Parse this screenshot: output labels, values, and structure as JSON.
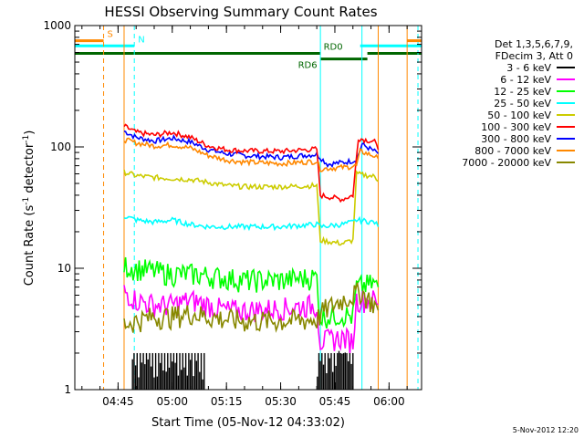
{
  "chart_data": {
    "type": "line",
    "title": "HESSI Observing Summary Count Rates",
    "xlabel": "Start Time (05-Nov-12 04:33:02)",
    "ylabel": "Count Rate (s",
    "ylabel_sup": "-1",
    "ylabel_mid": " detector",
    "ylabel_sup2": "-1",
    "ylabel_end": ")",
    "yscale": "log",
    "ylim": [
      1,
      1000
    ],
    "xlim": [
      "04:33:02",
      "06:09:00"
    ],
    "x_ticks": [
      "04:45",
      "05:00",
      "05:15",
      "05:30",
      "05:45",
      "06:00"
    ],
    "y_ticks": [
      "1",
      "10",
      "100",
      "1000"
    ],
    "timestamp": "5-Nov-2012 12:20",
    "legend": {
      "header": [
        "Det 1,3,5,6,7,9,",
        "FDecim 3, Att 0"
      ],
      "entries": [
        {
          "label": "3 - 6 keV",
          "color": "#000000"
        },
        {
          "label": "6 - 12 keV",
          "color": "#ff00ff"
        },
        {
          "label": "12 - 25 keV",
          "color": "#00ff00"
        },
        {
          "label": "25 - 50 keV",
          "color": "#00ffff"
        },
        {
          "label": "50 - 100 keV",
          "color": "#cccc00"
        },
        {
          "label": "100 - 300 keV",
          "color": "#ff0000"
        },
        {
          "label": "300 - 800 keV",
          "color": "#0000ff"
        },
        {
          "label": "800 - 7000 keV",
          "color": "#ff8800"
        },
        {
          "label": "7000 - 20000 keV",
          "color": "#888800"
        }
      ]
    },
    "flag_bars": [
      {
        "label": "S",
        "color": "#ff8800",
        "segments": [
          [
            "04:33:02",
            "04:41:00"
          ],
          [
            "06:05:00",
            "06:09:00"
          ]
        ],
        "level": 750
      },
      {
        "label": "N",
        "color": "#00ffff",
        "segments": [
          [
            "04:33:02",
            "04:49:30"
          ],
          [
            "05:52:00",
            "06:09:00"
          ]
        ],
        "level": 680
      },
      {
        "label": "RD0",
        "color": "#006600",
        "segments": [
          [
            "04:33:02",
            "05:41:00"
          ],
          [
            "05:54:00",
            "06:09:00"
          ]
        ],
        "level": 590
      },
      {
        "label": "RD6",
        "color": "#006600",
        "segments": [
          [
            "05:41:00",
            "05:54:00"
          ]
        ],
        "level": 530
      }
    ],
    "vertical_lines": [
      {
        "time": "04:41:00",
        "color": "#ff8800",
        "style": "dashed"
      },
      {
        "time": "04:46:40",
        "color": "#ff8800",
        "style": "solid"
      },
      {
        "time": "04:49:30",
        "color": "#00ffff",
        "style": "dashed"
      },
      {
        "time": "05:41:00",
        "color": "#00ffff",
        "style": "solid"
      },
      {
        "time": "05:52:30",
        "color": "#00ffff",
        "style": "solid"
      },
      {
        "time": "05:57:00",
        "color": "#ff8800",
        "style": "solid"
      },
      {
        "time": "06:05:00",
        "color": "#ff8800",
        "style": "solid"
      },
      {
        "time": "06:08:00",
        "color": "#00ffff",
        "style": "dashed"
      }
    ],
    "series": [
      {
        "name": "300 - 800 keV",
        "color": "#0000ff",
        "data": [
          [
            "04:46:40",
            135
          ],
          [
            "04:50:00",
            120
          ],
          [
            "04:55:00",
            112
          ],
          [
            "05:00:00",
            118
          ],
          [
            "05:05:00",
            110
          ],
          [
            "05:10:00",
            95
          ],
          [
            "05:15:00",
            88
          ],
          [
            "05:20:00",
            85
          ],
          [
            "05:30:00",
            82
          ],
          [
            "05:40:00",
            87
          ],
          [
            "05:43:00",
            72
          ],
          [
            "05:48:00",
            75
          ],
          [
            "05:51:00",
            78
          ],
          [
            "05:52:30",
            105
          ],
          [
            "05:56:00",
            92
          ],
          [
            "05:57:00",
            88
          ]
        ]
      },
      {
        "name": "100 - 300 keV",
        "color": "#ff0000",
        "data": [
          [
            "04:46:40",
            148
          ],
          [
            "04:50:00",
            132
          ],
          [
            "04:55:00",
            125
          ],
          [
            "05:00:00",
            132
          ],
          [
            "05:05:00",
            120
          ],
          [
            "05:10:00",
            102
          ],
          [
            "05:15:00",
            95
          ],
          [
            "05:20:00",
            93
          ],
          [
            "05:30:00",
            92
          ],
          [
            "05:40:00",
            96
          ],
          [
            "05:41:00",
            40
          ],
          [
            "05:47:00",
            37
          ],
          [
            "05:50:00",
            40
          ],
          [
            "05:51:30",
            118
          ],
          [
            "05:56:00",
            110
          ],
          [
            "05:57:00",
            95
          ]
        ]
      },
      {
        "name": "800 - 7000 keV",
        "color": "#ff8800",
        "data": [
          [
            "04:46:40",
            115
          ],
          [
            "04:50:00",
            108
          ],
          [
            "04:55:00",
            102
          ],
          [
            "05:00:00",
            104
          ],
          [
            "05:05:00",
            98
          ],
          [
            "05:10:00",
            85
          ],
          [
            "05:15:00",
            78
          ],
          [
            "05:20:00",
            75
          ],
          [
            "05:30:00",
            73
          ],
          [
            "05:40:00",
            76
          ],
          [
            "05:41:00",
            66
          ],
          [
            "05:48:00",
            68
          ],
          [
            "05:51:00",
            70
          ],
          [
            "05:52:00",
            92
          ],
          [
            "05:56:00",
            84
          ],
          [
            "05:57:00",
            80
          ]
        ]
      },
      {
        "name": "50 - 100 keV",
        "color": "#cccc00",
        "data": [
          [
            "04:46:40",
            62
          ],
          [
            "04:50:00",
            58
          ],
          [
            "04:55:00",
            56
          ],
          [
            "05:00:00",
            55
          ],
          [
            "05:05:00",
            54
          ],
          [
            "05:10:00",
            51
          ],
          [
            "05:15:00",
            48
          ],
          [
            "05:20:00",
            47
          ],
          [
            "05:30:00",
            47
          ],
          [
            "05:40:00",
            48
          ],
          [
            "05:41:00",
            17
          ],
          [
            "05:47:00",
            16
          ],
          [
            "05:50:00",
            17
          ],
          [
            "05:51:00",
            60
          ],
          [
            "05:56:00",
            57
          ],
          [
            "05:57:00",
            52
          ]
        ]
      },
      {
        "name": "25 - 50 keV",
        "color": "#00ffff",
        "data": [
          [
            "04:46:40",
            27
          ],
          [
            "04:50:00",
            25
          ],
          [
            "04:55:00",
            24
          ],
          [
            "05:00:00",
            25
          ],
          [
            "05:05:00",
            23
          ],
          [
            "05:10:00",
            22
          ],
          [
            "05:15:00",
            22
          ],
          [
            "05:20:00",
            22
          ],
          [
            "05:30:00",
            22
          ],
          [
            "05:40:00",
            23
          ],
          [
            "05:41:00",
            22
          ],
          [
            "05:47:00",
            23
          ],
          [
            "05:50:00",
            24
          ],
          [
            "05:51:00",
            25
          ],
          [
            "05:56:00",
            24
          ],
          [
            "05:57:00",
            22
          ]
        ]
      },
      {
        "name": "12 - 25 keV",
        "color": "#00ff00",
        "data": [
          [
            "04:46:40",
            10.5
          ],
          [
            "04:50:00",
            10
          ],
          [
            "04:55:00",
            9.5
          ],
          [
            "05:00:00",
            9
          ],
          [
            "05:05:00",
            9
          ],
          [
            "05:10:00",
            8.7
          ],
          [
            "05:15:00",
            8.3
          ],
          [
            "05:20:00",
            8
          ],
          [
            "05:30:00",
            8
          ],
          [
            "05:40:00",
            8.5
          ],
          [
            "05:41:00",
            4
          ],
          [
            "05:47:00",
            4.2
          ],
          [
            "05:50:00",
            4
          ],
          [
            "05:51:00",
            7
          ],
          [
            "05:56:00",
            7.5
          ],
          [
            "05:57:00",
            7
          ]
        ]
      },
      {
        "name": "6 - 12 keV",
        "color": "#ff00ff",
        "data": [
          [
            "04:46:40",
            6.5
          ],
          [
            "04:50:00",
            5.5
          ],
          [
            "04:55:00",
            5
          ],
          [
            "05:00:00",
            5
          ],
          [
            "05:05:00",
            5.5
          ],
          [
            "05:10:00",
            5
          ],
          [
            "05:15:00",
            4.5
          ],
          [
            "05:20:00",
            4.5
          ],
          [
            "05:30:00",
            4.7
          ],
          [
            "05:40:00",
            5
          ],
          [
            "05:41:00",
            2.5
          ],
          [
            "05:47:00",
            2.7
          ],
          [
            "05:50:00",
            2.5
          ],
          [
            "05:51:00",
            5.5
          ],
          [
            "05:56:00",
            5.5
          ],
          [
            "05:57:00",
            5
          ]
        ]
      },
      {
        "name": "7000 - 20000 keV",
        "color": "#888800",
        "data": [
          [
            "04:46:40",
            3.5
          ],
          [
            "04:50:00",
            3.7
          ],
          [
            "04:55:00",
            4
          ],
          [
            "05:00:00",
            4
          ],
          [
            "05:05:00",
            4.3
          ],
          [
            "05:10:00",
            4
          ],
          [
            "05:15:00",
            3.8
          ],
          [
            "05:20:00",
            3.7
          ],
          [
            "05:30:00",
            3.7
          ],
          [
            "05:40:00",
            3.8
          ],
          [
            "05:42:00",
            4.5
          ],
          [
            "05:47:00",
            5.5
          ],
          [
            "05:50:00",
            6
          ],
          [
            "05:52:00",
            6.5
          ],
          [
            "05:56:00",
            5
          ],
          [
            "05:57:00",
            4.5
          ]
        ]
      },
      {
        "name": "3 - 6 keV",
        "color": "#000000",
        "data": [
          [
            "04:49:00",
            1.5
          ],
          [
            "04:55:00",
            1.6
          ],
          [
            "05:00:00",
            1.7
          ],
          [
            "05:05:00",
            1.6
          ],
          [
            "05:08:00",
            1.5
          ],
          [
            "05:41:00",
            1.6
          ],
          [
            "05:47:00",
            1.9
          ],
          [
            "05:50:00",
            1.6
          ]
        ]
      }
    ]
  }
}
